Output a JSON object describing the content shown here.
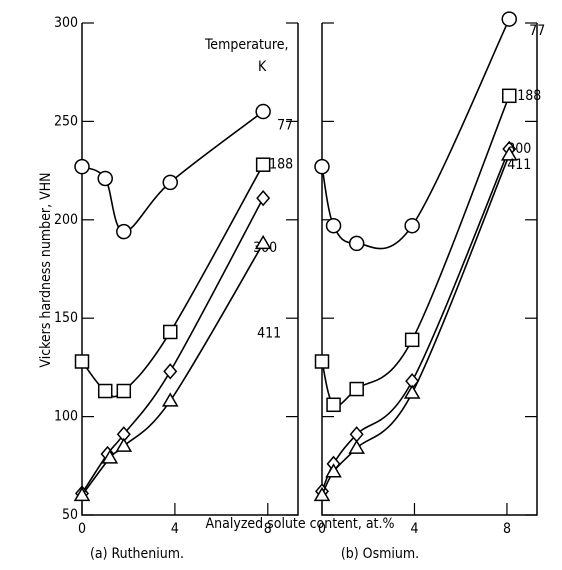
{
  "chart_data": [
    {
      "type": "line",
      "caption": "(a) Ruthenium.",
      "ylabel": "Vickers hardness number, VHN",
      "xlabel": "Analyzed solute content, at.%",
      "legend_title": [
        "Temperature,",
        "K"
      ],
      "xlim": [
        0,
        9.3
      ],
      "ylim": [
        50,
        300
      ],
      "xticks": [
        0,
        4,
        8
      ],
      "yticks": [
        50,
        100,
        150,
        200,
        250,
        300
      ],
      "series": [
        {
          "name": "77",
          "color": "#000000",
          "marker": "circle",
          "x": [
            0,
            1,
            1.8,
            3.8,
            7.8
          ],
          "values": [
            227,
            221,
            194,
            219,
            255
          ]
        },
        {
          "name": "188",
          "color": "#000000",
          "marker": "square",
          "x": [
            0,
            1,
            1.8,
            3.8,
            7.8
          ],
          "values": [
            128,
            113,
            113,
            143,
            228
          ]
        },
        {
          "name": "300",
          "color": "#000000",
          "marker": "diamond",
          "x": [
            0,
            1.1,
            1.8,
            3.8,
            7.8
          ],
          "values": [
            61,
            81,
            91,
            123,
            211
          ]
        },
        {
          "name": "411",
          "color": "#000000",
          "marker": "triangle",
          "x": [
            0,
            1.2,
            1.8,
            3.8,
            7.8
          ],
          "values": [
            60,
            79,
            85,
            108,
            188
          ]
        }
      ]
    },
    {
      "type": "line",
      "caption": "(b) Osmium.",
      "xlim": [
        0,
        9.3
      ],
      "ylim": [
        50,
        300
      ],
      "xticks": [
        0,
        4,
        8
      ],
      "yticks": [
        50,
        100,
        150,
        200,
        250,
        300
      ],
      "series": [
        {
          "name": "77",
          "color": "#000000",
          "marker": "circle",
          "x": [
            0,
            0.5,
            1.5,
            3.9,
            8.1
          ],
          "values": [
            227,
            197,
            188,
            197,
            302
          ]
        },
        {
          "name": "188",
          "color": "#000000",
          "marker": "square",
          "x": [
            0,
            0.5,
            1.5,
            3.9,
            8.1
          ],
          "values": [
            128,
            106,
            114,
            139,
            263
          ]
        },
        {
          "name": "300",
          "color": "#000000",
          "marker": "diamond",
          "x": [
            0,
            0.5,
            1.5,
            3.9,
            8.1
          ],
          "values": [
            62,
            76,
            91,
            118,
            236
          ]
        },
        {
          "name": "411",
          "color": "#000000",
          "marker": "triangle",
          "x": [
            0,
            0.5,
            1.5,
            3.9,
            8.1
          ],
          "values": [
            60,
            72,
            84,
            112,
            233
          ]
        }
      ]
    }
  ]
}
